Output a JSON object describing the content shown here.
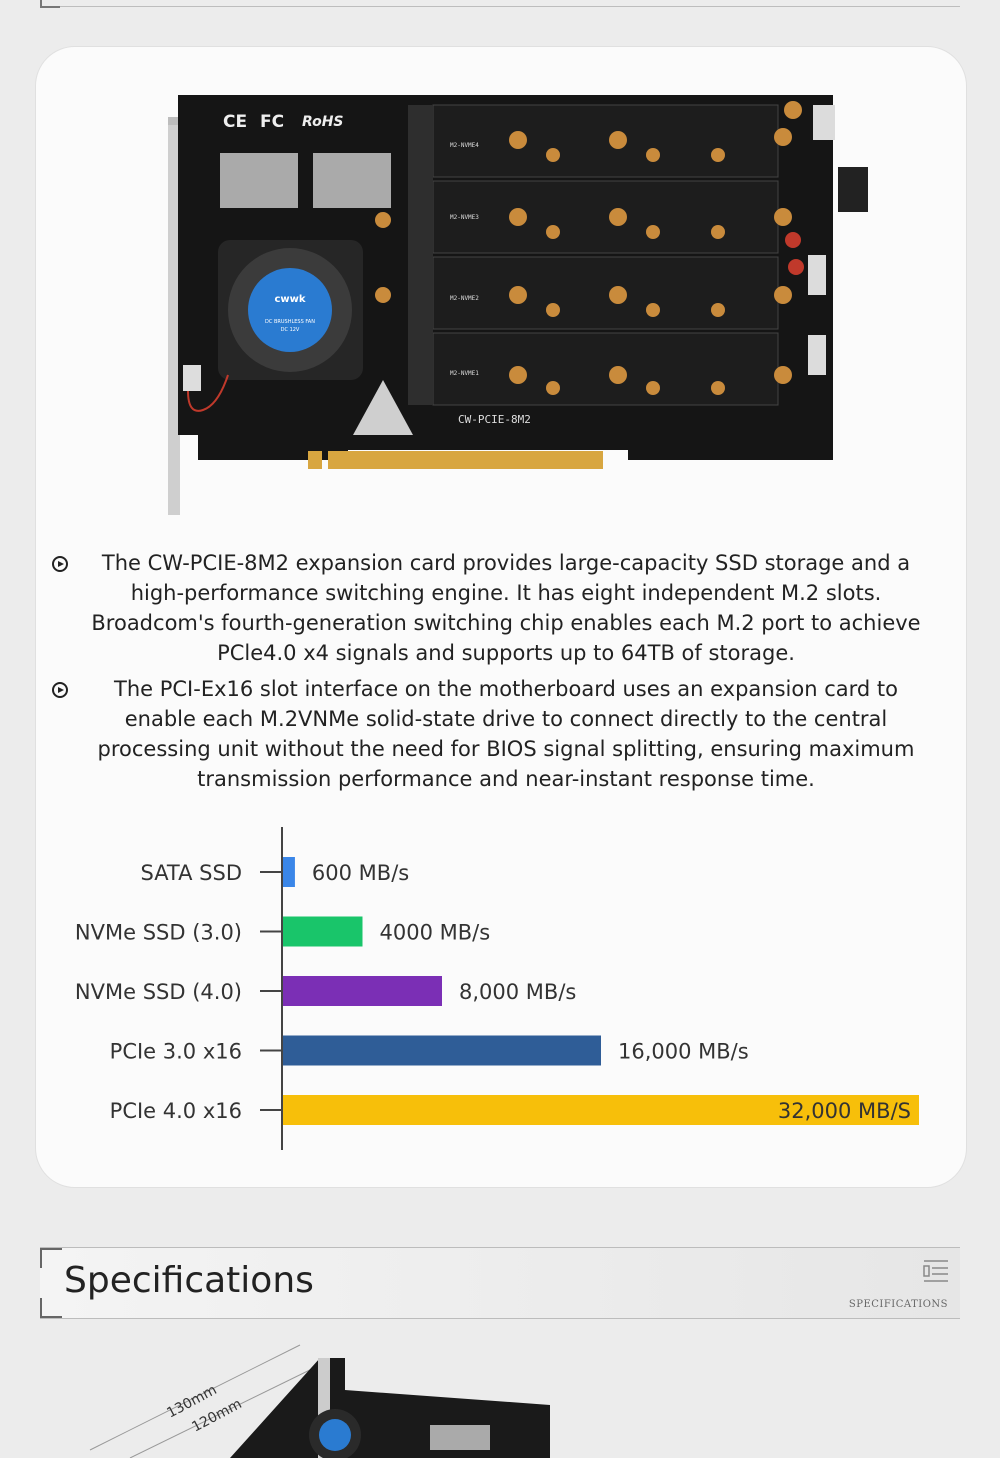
{
  "card": {
    "marks": [
      "CE",
      "FC",
      "RoHS"
    ],
    "fan_brand": "cwwk",
    "fan_label": "DC BRUSHLESS FAN",
    "fan_voltage": "DC 12V",
    "slots": [
      "M2-NVME4",
      "M2-NVME3",
      "M2-NVME2",
      "M2-NVME1"
    ],
    "model": "CW-PCIE-8M2"
  },
  "bullets": [
    "The CW-PCIE-8M2 expansion card provides large-capacity SSD storage and a high-performance switching engine. It has eight independent M.2 slots. Broadcom's fourth-generation switching chip enables each M.2 port to achieve PCle4.0 x4 signals and supports up to 64TB of storage.",
    "The PCI-Ex16 slot interface on the motherboard uses an expansion card to enable each M.2VNMe solid-state drive to connect directly to the central processing unit without the need for BIOS signal splitting, ensuring maximum transmission performance and near-instant response time."
  ],
  "chart_data": {
    "type": "bar",
    "orientation": "horizontal",
    "categories": [
      "SATA  SSD",
      "NVMe SSD (3.0)",
      "NVMe SSD (4.0)",
      "PCIe 3.0 x16",
      "PCIe 4.0 x16"
    ],
    "values": [
      600,
      4000,
      8000,
      16000,
      32000
    ],
    "value_labels": [
      "600 MB/s",
      "4000 MB/s",
      "8,000 MB/s",
      "16,000 MB/s",
      "32,000 MB/S"
    ],
    "colors": [
      "#3a86e8",
      "#19c56a",
      "#7b2fb5",
      "#2f5d97",
      "#f7bf0a"
    ],
    "xlim": [
      0,
      32000
    ]
  },
  "specs": {
    "title": "Specifications",
    "subtitle": "SPECIFICATIONS"
  },
  "bottom": {
    "dim_outer": "130mm",
    "dim_inner": "120mm"
  }
}
